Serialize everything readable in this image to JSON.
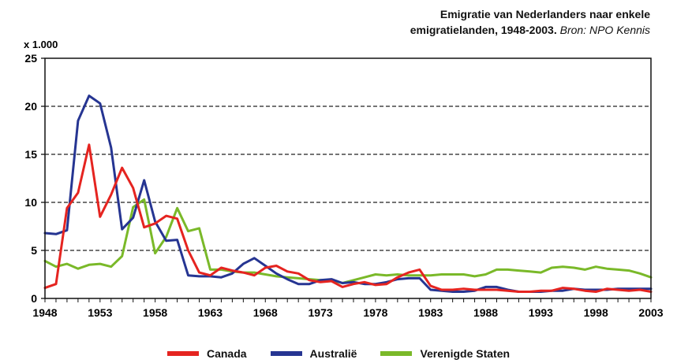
{
  "title_line1": "Emigratie van Nederlanders naar enkele",
  "title_line2_bold": "emigratielanden, 1948-2003.",
  "title_line2_source": "Bron: NPO Kennis",
  "unit_label": "x 1.000",
  "chart_data": {
    "type": "line",
    "title": "Emigratie van Nederlanders naar enkele emigratielanden, 1948-2003.",
    "ylabel": "x 1.000",
    "xlim": [
      1948,
      2003
    ],
    "ylim": [
      0,
      25
    ],
    "yticks": [
      0,
      5,
      10,
      15,
      20,
      25
    ],
    "xticks": [
      1948,
      1953,
      1958,
      1963,
      1968,
      1973,
      1978,
      1983,
      1988,
      1993,
      1998,
      2003
    ],
    "grid": "horizontal dashed",
    "legend": "bottom",
    "x": [
      1948,
      1949,
      1950,
      1951,
      1952,
      1953,
      1954,
      1955,
      1956,
      1957,
      1958,
      1959,
      1960,
      1961,
      1962,
      1963,
      1964,
      1965,
      1966,
      1967,
      1968,
      1969,
      1970,
      1971,
      1972,
      1973,
      1974,
      1975,
      1976,
      1977,
      1978,
      1979,
      1980,
      1981,
      1982,
      1983,
      1984,
      1985,
      1986,
      1987,
      1988,
      1989,
      1990,
      1991,
      1992,
      1993,
      1994,
      1995,
      1996,
      1997,
      1998,
      1999,
      2000,
      2001,
      2002,
      2003
    ],
    "series": [
      {
        "name": "Canada",
        "color": "#e52420",
        "values": [
          1.1,
          1.5,
          9.4,
          11.0,
          16.0,
          8.5,
          10.8,
          13.6,
          11.5,
          7.4,
          7.8,
          8.6,
          8.3,
          5.0,
          2.7,
          2.4,
          3.2,
          2.9,
          2.7,
          2.4,
          3.2,
          3.4,
          2.8,
          2.6,
          1.9,
          1.7,
          1.8,
          1.2,
          1.5,
          1.7,
          1.4,
          1.5,
          2.2,
          2.7,
          3.0,
          1.3,
          0.9,
          0.9,
          1.0,
          0.9,
          0.9,
          0.9,
          0.8,
          0.7,
          0.7,
          0.8,
          0.8,
          1.1,
          1.0,
          0.8,
          0.7,
          1.0,
          0.9,
          0.8,
          0.9,
          0.7
        ]
      },
      {
        "name": "Australië",
        "color": "#263592",
        "values": [
          6.8,
          6.7,
          7.1,
          18.5,
          21.1,
          20.3,
          15.7,
          7.2,
          8.4,
          12.3,
          8.0,
          6.0,
          6.1,
          2.4,
          2.3,
          2.3,
          2.2,
          2.6,
          3.6,
          4.2,
          3.4,
          2.6,
          2.0,
          1.5,
          1.5,
          1.9,
          2.0,
          1.6,
          1.7,
          1.5,
          1.5,
          1.7,
          2.0,
          2.1,
          2.1,
          0.9,
          0.8,
          0.7,
          0.7,
          0.8,
          1.2,
          1.2,
          0.9,
          0.7,
          0.7,
          0.7,
          0.8,
          0.8,
          1.0,
          0.9,
          0.9,
          0.9,
          1.0,
          1.0,
          1.0,
          1.0
        ]
      },
      {
        "name": "Verenigde Staten",
        "color": "#7ab929",
        "values": [
          3.9,
          3.3,
          3.6,
          3.1,
          3.5,
          3.6,
          3.3,
          4.4,
          9.5,
          10.3,
          4.7,
          6.4,
          9.4,
          7.0,
          7.3,
          3.0,
          3.0,
          2.8,
          2.7,
          2.7,
          2.5,
          2.3,
          2.2,
          2.1,
          2.0,
          1.9,
          1.9,
          1.6,
          1.9,
          2.2,
          2.5,
          2.4,
          2.5,
          2.4,
          2.4,
          2.4,
          2.5,
          2.5,
          2.5,
          2.3,
          2.5,
          3.0,
          3.0,
          2.9,
          2.8,
          2.7,
          3.2,
          3.3,
          3.2,
          3.0,
          3.3,
          3.1,
          3.0,
          2.9,
          2.6,
          2.2
        ]
      }
    ]
  }
}
